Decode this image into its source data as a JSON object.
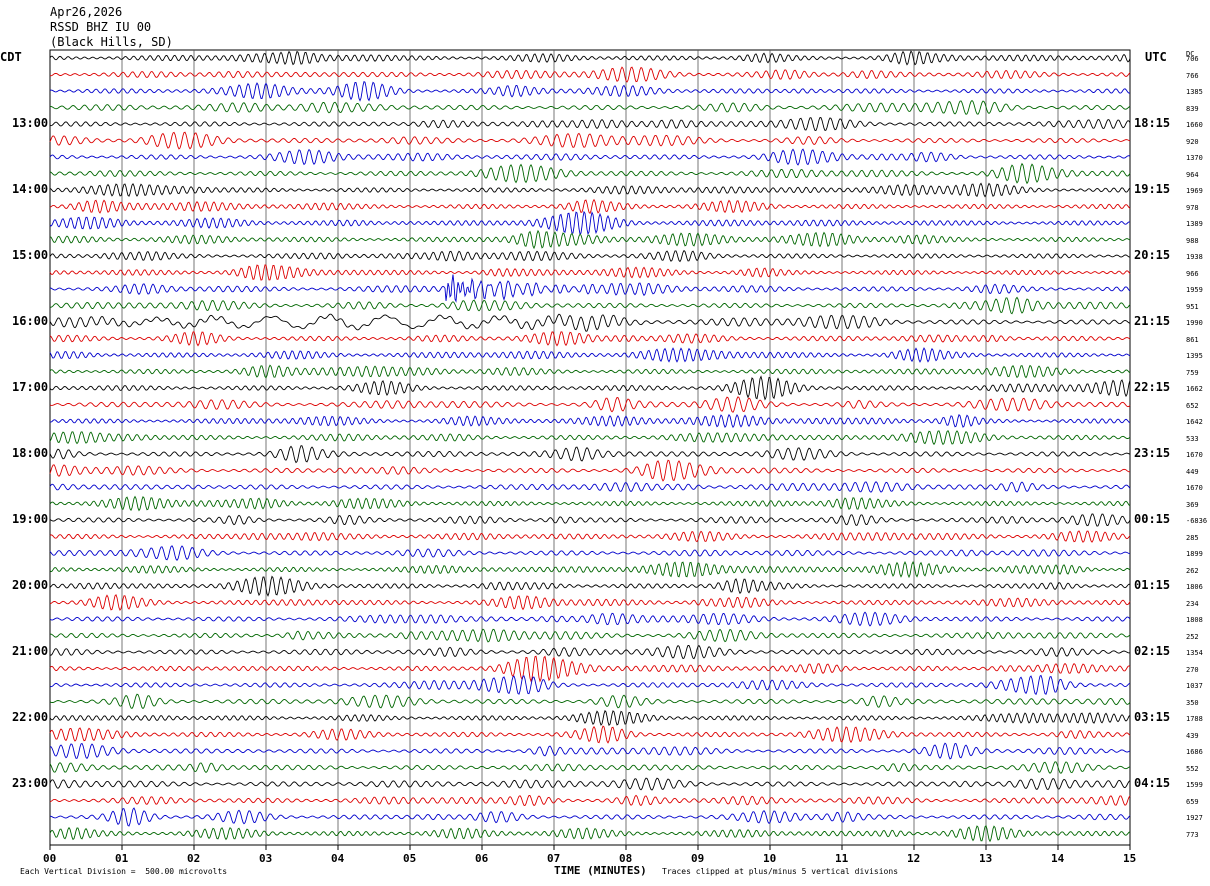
{
  "header": {
    "date": "Apr26,2026",
    "station": "RSSD BHZ IU 00",
    "location": "(Black Hills, SD)"
  },
  "left_timezone": "CDT",
  "right_timezone": "UTC",
  "dc_label": "DC",
  "footer": {
    "scale_note": "Each Vertical Division =  500.00 microvolts",
    "clip_note": "Traces clipped at plus/minus 5 vertical divisions"
  },
  "colors": {
    "traces": [
      "#000000",
      "#dd0000",
      "#0000cc",
      "#006600"
    ],
    "grid": "#000000"
  },
  "chart_data": {
    "type": "line",
    "title": "RSSD BHZ IU 00",
    "xlabel": "TIME (MINUTES)",
    "ylabel": "",
    "x_ticks": [
      "00",
      "01",
      "02",
      "03",
      "04",
      "05",
      "06",
      "07",
      "08",
      "09",
      "10",
      "11",
      "12",
      "13",
      "14",
      "15"
    ],
    "xlim": [
      0,
      15
    ],
    "left_hour_labels": [
      "13:00",
      "14:00",
      "15:00",
      "16:00",
      "17:00",
      "18:00",
      "19:00",
      "20:00",
      "21:00",
      "22:00",
      "23:00"
    ],
    "right_hour_labels": [
      "18:15",
      "19:15",
      "20:15",
      "21:15",
      "22:15",
      "23:15",
      "00:15",
      "01:15",
      "02:15",
      "03:15",
      "04:15"
    ],
    "trace_count": 48,
    "dc_offsets": [
      "706",
      "766",
      "1385",
      "839",
      "1660",
      "920",
      "1370",
      "964",
      "1969",
      "978",
      "1389",
      "988",
      "1938",
      "966",
      "1959",
      "951",
      "1990",
      "861",
      "1395",
      "759",
      "1662",
      "652",
      "1642",
      "533",
      "1670",
      "449",
      "1670",
      "369",
      "-6836",
      "285",
      "1899",
      "262",
      "1806",
      "234",
      "1808",
      "252",
      "1354",
      "270",
      "1037",
      "350",
      "1788",
      "439",
      "1686",
      "552",
      "1599",
      "659",
      "1927",
      "773"
    ],
    "events": [
      {
        "trace": 14,
        "start_minute": 5.5,
        "end_minute": 8.4,
        "description": "local event burst"
      },
      {
        "trace": 16,
        "start_minute": 0.0,
        "end_minute": 8.5,
        "description": "long-period surface waves"
      }
    ]
  }
}
